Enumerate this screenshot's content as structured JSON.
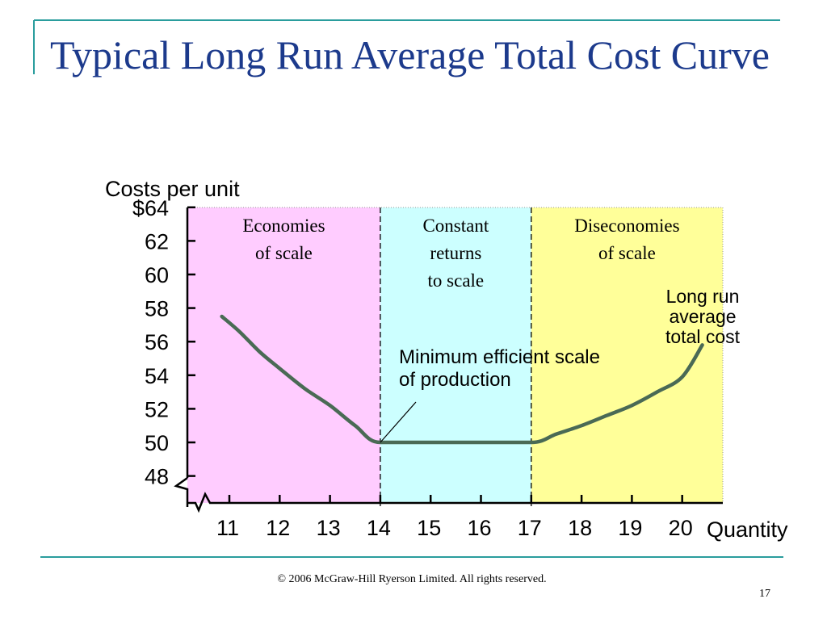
{
  "slide": {
    "title": "Typical Long Run Average Total Cost Curve",
    "footer": "© 2006 McGraw-Hill Ryerson Limited.  All rights reserved.",
    "page_number": "17"
  },
  "colors": {
    "title": "#1c3a8c",
    "frame": "#2a9d9d",
    "economies": "#ffccff",
    "constant": "#ccffff",
    "diseconomies": "#ffff99",
    "curve": "#4a6a55"
  },
  "chart_data": {
    "type": "line",
    "title": "Typical Long Run Average Total Cost Curve",
    "xlabel": "Quantity",
    "ylabel": "Costs per unit",
    "xlim": [
      10,
      21
    ],
    "ylim": [
      47.5,
      64
    ],
    "x_ticks": [
      "11",
      "12",
      "13",
      "14",
      "15",
      "16",
      "17",
      "18",
      "19",
      "20"
    ],
    "y_ticks": [
      {
        "value": 64,
        "label": "$64"
      },
      {
        "value": 62,
        "label": "62"
      },
      {
        "value": 60,
        "label": "60"
      },
      {
        "value": 58,
        "label": "58"
      },
      {
        "value": 56,
        "label": "56"
      },
      {
        "value": 54,
        "label": "54"
      },
      {
        "value": 52,
        "label": "52"
      },
      {
        "value": 50,
        "label": "50"
      },
      {
        "value": 48,
        "label": "48"
      }
    ],
    "regions": [
      {
        "name": "economies",
        "from": 10,
        "to": 14,
        "label": [
          "Economies",
          "of scale"
        ]
      },
      {
        "name": "constant",
        "from": 14,
        "to": 17,
        "label": [
          "Constant",
          "returns",
          "to scale"
        ]
      },
      {
        "name": "diseconomies",
        "from": 17,
        "to": 21,
        "label": [
          "Diseconomies",
          "of scale"
        ]
      }
    ],
    "series": [
      {
        "name": "Long run average total cost",
        "x": [
          10.85,
          11.2,
          11.6,
          12,
          12.5,
          13,
          13.5,
          14,
          15,
          16,
          17,
          17.5,
          18,
          18.5,
          19,
          19.5,
          20,
          20.4
        ],
        "y": [
          57.5,
          56.6,
          55.4,
          54.4,
          53.2,
          52.2,
          51.0,
          50,
          50,
          50,
          50,
          50.5,
          51.0,
          51.6,
          52.2,
          53.0,
          53.9,
          55.8
        ]
      }
    ],
    "annotations": [
      {
        "text": [
          "Minimum efficient scale",
          "of production"
        ],
        "points_to": [
          14,
          50
        ]
      },
      {
        "text": [
          "Long run",
          "average",
          "total cost"
        ]
      }
    ]
  }
}
